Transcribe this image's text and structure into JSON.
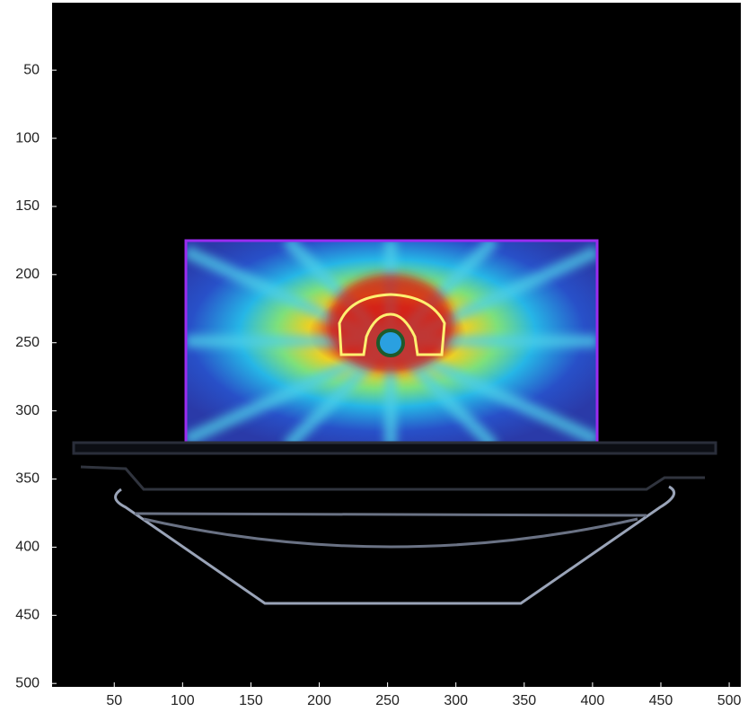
{
  "chart_data": {
    "type": "image",
    "xlim": [
      4.5,
      508.5
    ],
    "ylim": [
      0.5,
      502.5
    ],
    "y_reversed": true,
    "xticks": [
      50,
      100,
      150,
      200,
      250,
      300,
      350,
      400,
      450,
      500
    ],
    "yticks": [
      50,
      100,
      150,
      200,
      250,
      300,
      350,
      400,
      450,
      500
    ]
  }
}
